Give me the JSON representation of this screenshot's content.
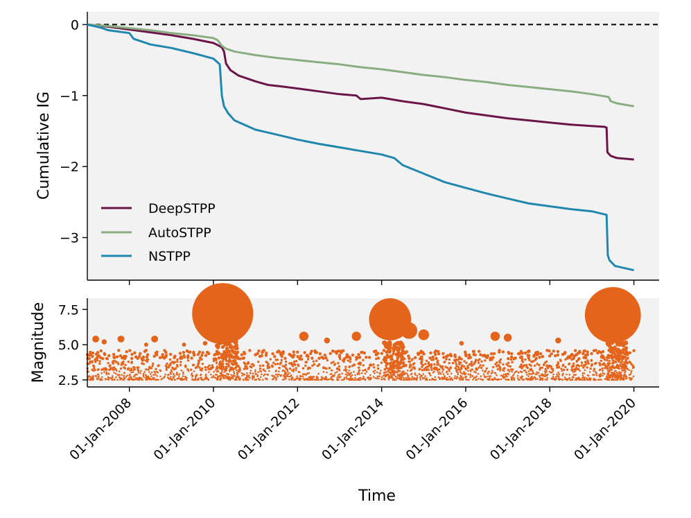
{
  "chart_data": [
    {
      "type": "line",
      "panel": "top",
      "title": "",
      "xlabel": "",
      "ylabel": "Cumulative IG",
      "xlim": [
        2007.0,
        2020.6
      ],
      "ylim": [
        -3.6,
        0.18
      ],
      "yticks": [
        0,
        -1,
        -2,
        -3
      ],
      "ytick_labels": [
        "0",
        "−1",
        "−2",
        "−3"
      ],
      "reference_line": {
        "y": 0,
        "style": "dashed",
        "color": "#000000"
      },
      "grid": false,
      "legend_position": "lower-left",
      "background": "#f2f2f2",
      "series": [
        {
          "name": "DeepSTPP",
          "color": "#6b1447",
          "x": [
            2007.0,
            2007.5,
            2008.0,
            2008.5,
            2009.0,
            2009.5,
            2010.0,
            2010.1,
            2010.2,
            2010.25,
            2010.3,
            2010.4,
            2010.6,
            2011.0,
            2011.3,
            2011.6,
            2012.0,
            2012.5,
            2013.0,
            2013.4,
            2013.5,
            2014.0,
            2014.5,
            2015.0,
            2015.5,
            2016.0,
            2016.5,
            2017.0,
            2017.5,
            2018.0,
            2018.5,
            2019.0,
            2019.3,
            2019.35,
            2019.37,
            2019.45,
            2019.6,
            2020.0
          ],
          "y": [
            0.0,
            -0.03,
            -0.07,
            -0.11,
            -0.15,
            -0.2,
            -0.26,
            -0.29,
            -0.32,
            -0.38,
            -0.55,
            -0.64,
            -0.72,
            -0.8,
            -0.85,
            -0.87,
            -0.9,
            -0.94,
            -0.98,
            -1.0,
            -1.05,
            -1.03,
            -1.08,
            -1.12,
            -1.18,
            -1.24,
            -1.28,
            -1.32,
            -1.35,
            -1.38,
            -1.41,
            -1.43,
            -1.44,
            -1.45,
            -1.8,
            -1.85,
            -1.88,
            -1.9
          ]
        },
        {
          "name": "AutoSTPP",
          "color": "#8aac81",
          "x": [
            2007.0,
            2007.5,
            2008.0,
            2008.5,
            2009.0,
            2009.5,
            2010.0,
            2010.1,
            2010.2,
            2010.3,
            2010.5,
            2011.0,
            2011.5,
            2012.0,
            2012.5,
            2013.0,
            2013.5,
            2014.0,
            2014.5,
            2015.0,
            2015.5,
            2016.0,
            2016.5,
            2017.0,
            2017.5,
            2018.0,
            2018.5,
            2019.0,
            2019.3,
            2019.4,
            2019.45,
            2019.6,
            2020.0
          ],
          "y": [
            0.0,
            -0.02,
            -0.05,
            -0.08,
            -0.12,
            -0.15,
            -0.19,
            -0.22,
            -0.3,
            -0.34,
            -0.38,
            -0.43,
            -0.47,
            -0.5,
            -0.53,
            -0.56,
            -0.6,
            -0.63,
            -0.67,
            -0.71,
            -0.74,
            -0.78,
            -0.81,
            -0.85,
            -0.88,
            -0.91,
            -0.94,
            -0.98,
            -1.01,
            -1.02,
            -1.08,
            -1.11,
            -1.15
          ]
        },
        {
          "name": "NSTPP",
          "color": "#1f87ad",
          "x": [
            2007.0,
            2007.3,
            2007.5,
            2008.0,
            2008.1,
            2008.5,
            2009.0,
            2009.5,
            2010.0,
            2010.15,
            2010.2,
            2010.25,
            2010.35,
            2010.5,
            2011.0,
            2011.5,
            2012.0,
            2012.5,
            2013.0,
            2013.5,
            2014.0,
            2014.3,
            2014.5,
            2015.0,
            2015.5,
            2016.0,
            2016.5,
            2017.0,
            2017.5,
            2018.0,
            2018.5,
            2019.0,
            2019.35,
            2019.38,
            2019.42,
            2019.55,
            2020.0
          ],
          "y": [
            0.0,
            -0.04,
            -0.08,
            -0.12,
            -0.2,
            -0.28,
            -0.33,
            -0.4,
            -0.48,
            -0.56,
            -1.0,
            -1.15,
            -1.25,
            -1.35,
            -1.48,
            -1.55,
            -1.62,
            -1.68,
            -1.73,
            -1.78,
            -1.83,
            -1.88,
            -1.98,
            -2.1,
            -2.22,
            -2.3,
            -2.38,
            -2.45,
            -2.52,
            -2.56,
            -2.6,
            -2.63,
            -2.68,
            -3.25,
            -3.32,
            -3.4,
            -3.46
          ]
        }
      ]
    },
    {
      "type": "scatter",
      "panel": "bottom",
      "title": "",
      "xlabel": "Time",
      "ylabel": "Magnitude",
      "xlim": [
        2007.0,
        2020.6
      ],
      "ylim": [
        2.0,
        8.3
      ],
      "yticks": [
        2.5,
        5.0,
        7.5
      ],
      "ytick_labels": [
        "2.5",
        "5.0",
        "7.5"
      ],
      "xticks": [
        2008,
        2010,
        2012,
        2014,
        2016,
        2018,
        2020
      ],
      "xtick_labels": [
        "01-Jan-2008",
        "01-Jan-2010",
        "01-Jan-2012",
        "01-Jan-2014",
        "01-Jan-2016",
        "01-Jan-2018",
        "01-Jan-2020"
      ],
      "color": "#e4641c",
      "background": "#f2f2f2",
      "grid": false,
      "note": "Dense background of small events between magnitude 2.5 and ~4.5 across the full time range",
      "background_events_range": {
        "x": [
          2007.0,
          2020.0
        ],
        "y": [
          2.5,
          4.6
        ]
      },
      "notable_events": [
        {
          "x": 2010.22,
          "y": 7.2
        },
        {
          "x": 2010.05,
          "y": 6.3
        },
        {
          "x": 2010.45,
          "y": 6.5
        },
        {
          "x": 2014.2,
          "y": 6.8
        },
        {
          "x": 2014.65,
          "y": 6.0
        },
        {
          "x": 2015.0,
          "y": 5.7
        },
        {
          "x": 2019.5,
          "y": 7.1
        },
        {
          "x": 2019.45,
          "y": 5.5
        },
        {
          "x": 2007.2,
          "y": 5.4
        },
        {
          "x": 2007.4,
          "y": 5.2
        },
        {
          "x": 2007.8,
          "y": 5.4
        },
        {
          "x": 2008.4,
          "y": 5.0
        },
        {
          "x": 2008.6,
          "y": 5.4
        },
        {
          "x": 2009.3,
          "y": 5.0
        },
        {
          "x": 2009.8,
          "y": 5.1
        },
        {
          "x": 2012.15,
          "y": 5.6
        },
        {
          "x": 2012.7,
          "y": 5.3
        },
        {
          "x": 2013.4,
          "y": 5.6
        },
        {
          "x": 2015.9,
          "y": 5.1
        },
        {
          "x": 2016.7,
          "y": 5.6
        },
        {
          "x": 2017.0,
          "y": 5.5
        },
        {
          "x": 2018.2,
          "y": 5.3
        }
      ]
    }
  ]
}
